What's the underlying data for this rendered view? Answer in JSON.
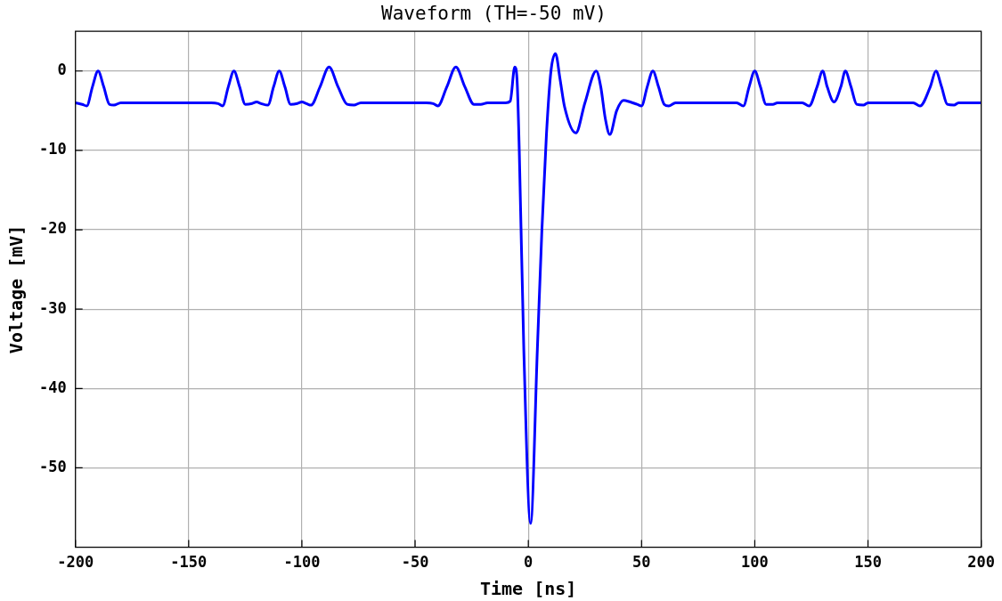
{
  "chart_data": {
    "type": "line",
    "title": "Waveform (TH=-50 mV)",
    "xlabel": "Time [ns]",
    "ylabel": "Voltage [mV]",
    "xlim": [
      -200,
      200
    ],
    "xticks": [
      -200,
      -150,
      -100,
      -50,
      0,
      50,
      100,
      150,
      200
    ],
    "ylim": [
      -60,
      5
    ],
    "yticks": [
      0,
      -10,
      -20,
      -30,
      -40,
      -50
    ],
    "grid": true,
    "legend": false,
    "marker": "none",
    "line_style": "solid",
    "series": [
      {
        "color": "#0000ff",
        "x": [
          -200,
          -197,
          -195,
          -192.5,
          -190,
          -187.5,
          -185,
          -183,
          -180,
          -140,
          -137,
          -135,
          -132.5,
          -130,
          -127.5,
          -125,
          -122,
          -120,
          -118,
          -115,
          -112.5,
          -110,
          -107.5,
          -105,
          -102,
          -100,
          -98,
          -96,
          -92,
          -88,
          -84,
          -80,
          -77,
          -74,
          -45,
          -42,
          -40,
          -36,
          -32,
          -28,
          -24,
          -21,
          -18,
          -10,
          -8,
          -6,
          -5,
          -4,
          -2,
          1,
          4,
          6,
          8,
          10,
          12,
          14,
          16,
          21,
          25,
          30,
          32,
          34,
          36,
          39,
          42,
          45,
          48,
          50,
          52.5,
          55,
          57.5,
          60,
          62,
          65,
          92,
          95,
          97.5,
          100,
          102.5,
          105,
          108,
          110,
          121,
          124,
          127.5,
          130,
          132,
          135,
          138,
          140,
          142.5,
          145,
          148,
          150,
          170,
          173,
          177.5,
          180,
          182.5,
          185,
          188,
          190,
          200
        ],
        "values": [
          -4,
          -4.2,
          -4.4,
          -2,
          0,
          -2,
          -4.2,
          -4.3,
          -4,
          -4,
          -4.1,
          -4.4,
          -2,
          0,
          -2,
          -4.2,
          -4.1,
          -3.9,
          -4.1,
          -4.3,
          -2,
          0,
          -2,
          -4.2,
          -4.1,
          -3.9,
          -4.1,
          -4.3,
          -2,
          0.5,
          -2,
          -4.2,
          -4.3,
          -4,
          -4,
          -4.1,
          -4.4,
          -2,
          0.5,
          -2,
          -4.2,
          -4.2,
          -4,
          -4,
          -3.8,
          0.5,
          -1,
          -10,
          -35,
          -57,
          -35,
          -20,
          -8,
          0,
          2.2,
          -1,
          -4.5,
          -7.8,
          -4,
          0,
          -2,
          -6,
          -8,
          -5,
          -3.7,
          -3.9,
          -4.2,
          -4.4,
          -2,
          0,
          -2,
          -4.2,
          -4.4,
          -4,
          -4,
          -4.4,
          -2,
          0,
          -2,
          -4.2,
          -4.2,
          -4,
          -4,
          -4.4,
          -2,
          0,
          -2,
          -3.9,
          -2,
          0,
          -2,
          -4.2,
          -4.3,
          -4,
          -4,
          -4.4,
          -2,
          0,
          -2,
          -4.2,
          -4.3,
          -4,
          -4
        ]
      }
    ]
  }
}
